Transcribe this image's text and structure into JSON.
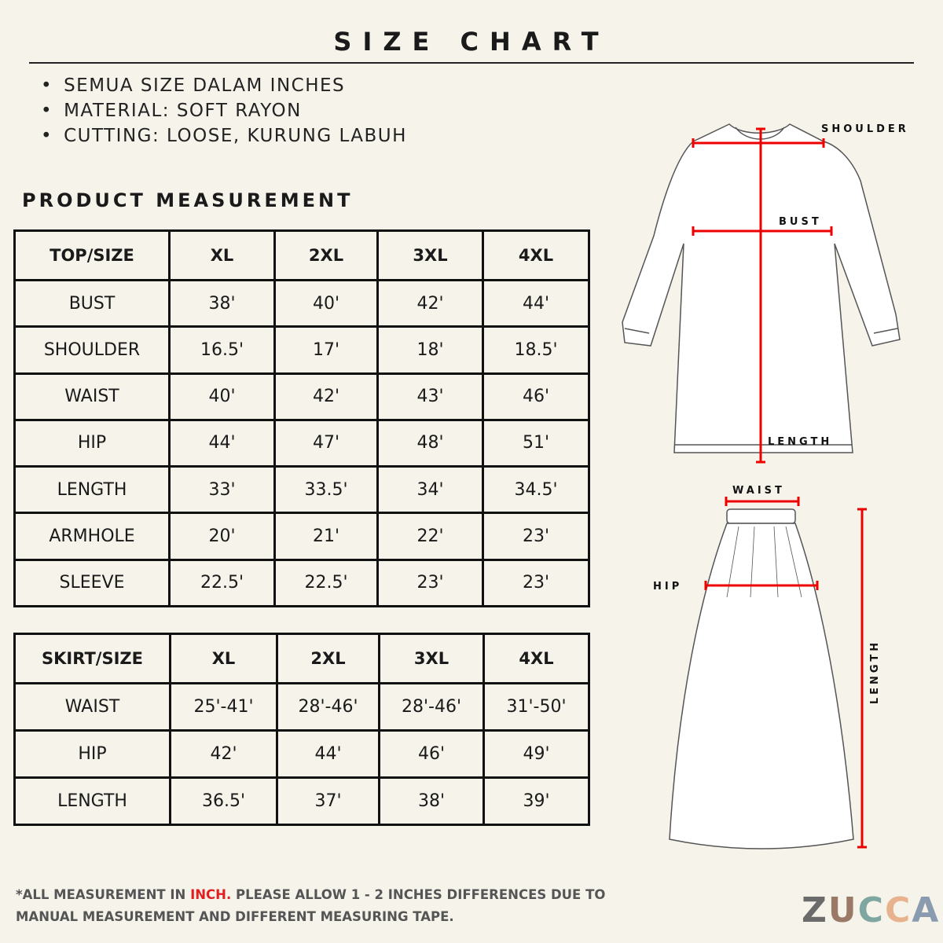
{
  "header": {
    "title": "SIZE CHART"
  },
  "notes": [
    "SEMUA SIZE DALAM INCHES",
    "MATERIAL: SOFT RAYON",
    "CUTTING: LOOSE, KURUNG LABUH"
  ],
  "section_title": "PRODUCT MEASUREMENT",
  "top_table": {
    "header": [
      "TOP/SIZE",
      "XL",
      "2XL",
      "3XL",
      "4XL"
    ],
    "rows": [
      [
        "BUST",
        "38'",
        "40'",
        "42'",
        "44'"
      ],
      [
        "SHOULDER",
        "16.5'",
        "17'",
        "18'",
        "18.5'"
      ],
      [
        "WAIST",
        "40'",
        "42'",
        "43'",
        "46'"
      ],
      [
        "HIP",
        "44'",
        "47'",
        "48'",
        "51'"
      ],
      [
        "LENGTH",
        "33'",
        "33.5'",
        "34'",
        "34.5'"
      ],
      [
        "ARMHOLE",
        "20'",
        "21'",
        "22'",
        "23'"
      ],
      [
        "SLEEVE",
        "22.5'",
        "22.5'",
        "23'",
        "23'"
      ]
    ]
  },
  "skirt_table": {
    "header": [
      "SKIRT/SIZE",
      "XL",
      "2XL",
      "3XL",
      "4XL"
    ],
    "rows": [
      [
        "WAIST",
        "25'-41'",
        "28'-46'",
        "28'-46'",
        "31'-50'"
      ],
      [
        "HIP",
        "42'",
        "44'",
        "46'",
        "49'"
      ],
      [
        "LENGTH",
        "36.5'",
        "37'",
        "38'",
        "39'"
      ]
    ]
  },
  "diagram_labels": {
    "shoulder": "SHOULDER",
    "bust": "BUST",
    "top_length": "LENGTH",
    "waist": "WAIST",
    "hip": "HIP",
    "skirt_length": "LENGTH"
  },
  "footer": {
    "note_start": "*ALL MEASUREMENT IN",
    "note_highlight": "INCH.",
    "note_end": "PLEASE ALLOW 1 - 2 INCHES DIFFERENCES DUE TO MANUAL MEASUREMENT AND DIFFERENT MEASURING TAPE."
  },
  "brand": [
    "Z",
    "U",
    "C",
    "C",
    "A"
  ]
}
